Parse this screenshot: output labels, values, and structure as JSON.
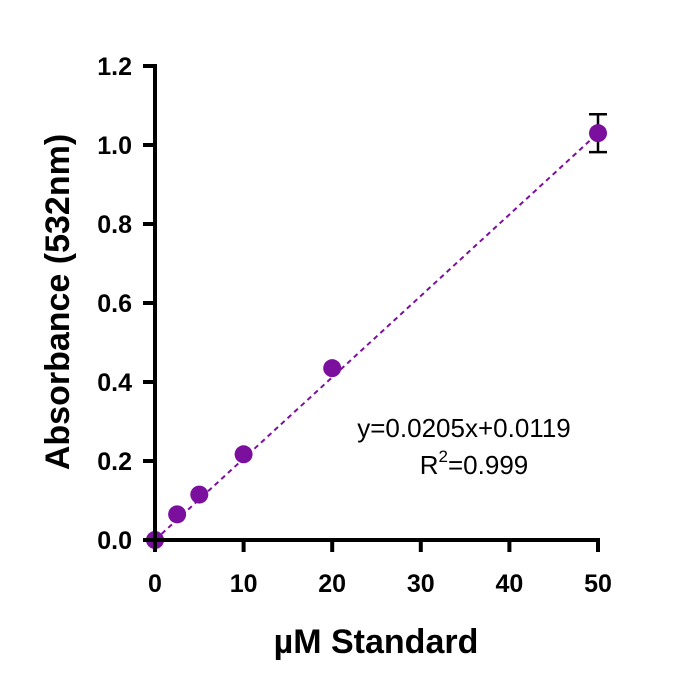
{
  "chart_data": {
    "type": "scatter",
    "xlabel": "µM Standard",
    "ylabel": "Absorbance (532nm)",
    "xlim": [
      0,
      50
    ],
    "ylim": [
      0,
      1.2
    ],
    "xticks": [
      0,
      10,
      20,
      30,
      40,
      50
    ],
    "yticks": [
      0.0,
      0.2,
      0.4,
      0.6,
      0.8,
      1.0,
      1.2
    ],
    "xtick_labels": [
      "0",
      "10",
      "20",
      "30",
      "40",
      "50"
    ],
    "ytick_labels": [
      "0.0",
      "0.2",
      "0.4",
      "0.6",
      "0.8",
      "1.0",
      "1.2"
    ],
    "grid": false,
    "series": [
      {
        "x": [
          0,
          2.5,
          5,
          10,
          20,
          50
        ],
        "y": [
          0.0,
          0.065,
          0.115,
          0.217,
          0.435,
          1.03
        ],
        "error": [
          0,
          0,
          0,
          0,
          0,
          0.048
        ],
        "color": "#7b0f9e"
      }
    ],
    "fit_line": {
      "x": [
        0,
        50
      ],
      "y": [
        0.0,
        1.03
      ],
      "style": "dashed",
      "color": "#7b0f9e"
    },
    "annotation": {
      "equation": "y=0.0205x+0.0119",
      "r2_prefix": "R",
      "r2_superscript": "2",
      "r2_suffix": "=0.999"
    }
  }
}
